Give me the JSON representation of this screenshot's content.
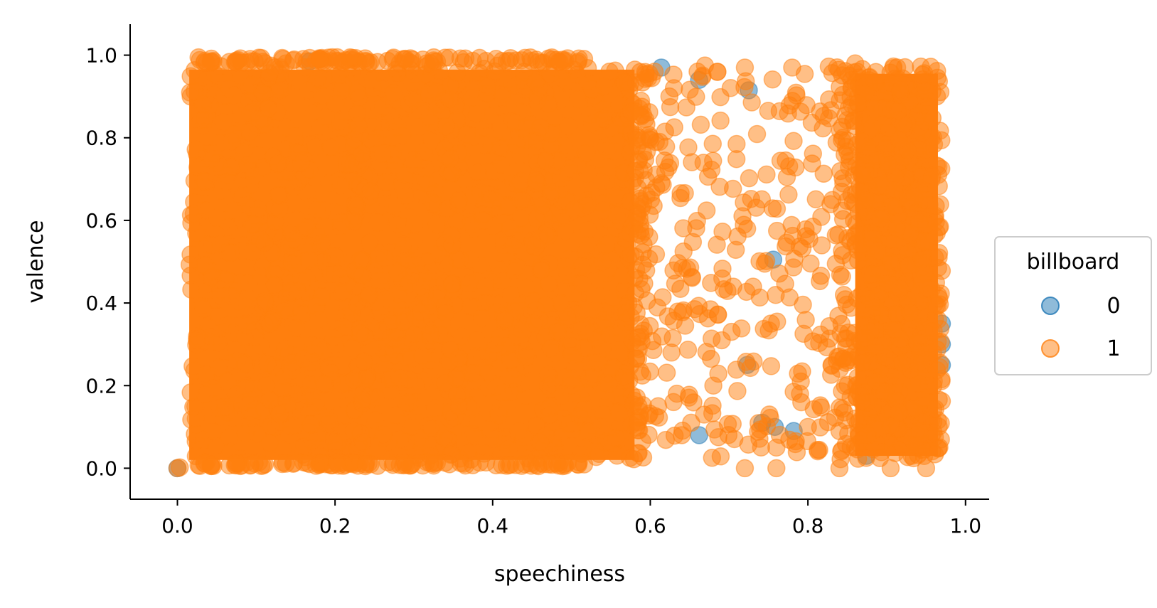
{
  "chart_data": {
    "type": "scatter",
    "xlabel": "speechiness",
    "ylabel": "valence",
    "xlim": [
      -0.06,
      1.03
    ],
    "ylim": [
      -0.075,
      1.075
    ],
    "xticks": [
      0.0,
      0.2,
      0.4,
      0.6,
      0.8,
      1.0
    ],
    "xtick_labels": [
      "0.0",
      "0.2",
      "0.4",
      "0.6",
      "0.8",
      "1.0"
    ],
    "yticks": [
      0.0,
      0.2,
      0.4,
      0.6,
      0.8,
      1.0
    ],
    "ytick_labels": [
      "0.0",
      "0.2",
      "0.4",
      "0.6",
      "0.8",
      "1.0"
    ],
    "grid": false,
    "legend": {
      "title": "billboard",
      "placement": "center-right-outside",
      "entries": [
        "0",
        "1"
      ]
    },
    "series": [
      {
        "name": "0",
        "color": "#1f77b4",
        "alpha": 0.5,
        "x_range": [
          0.0,
          0.97
        ],
        "y_range": [
          0.0,
          1.0
        ],
        "points": [
          [
            0.168,
            0.985
          ],
          [
            0.662,
            0.94
          ],
          [
            0.614,
            0.97
          ],
          [
            0.725,
            0.915
          ],
          [
            0.756,
            0.505
          ],
          [
            0.723,
            0.25
          ],
          [
            0.758,
            0.1
          ],
          [
            0.742,
            0.11
          ],
          [
            0.662,
            0.08
          ],
          [
            0.552,
            0.105
          ],
          [
            0.782,
            0.09
          ],
          [
            0.97,
            0.35
          ],
          [
            0.97,
            0.3
          ],
          [
            0.97,
            0.25
          ],
          [
            0.874,
            0.03
          ],
          [
            0.0,
            0.0
          ]
        ]
      },
      {
        "name": "1",
        "color": "#ff7f0e",
        "alpha": 0.5,
        "x_range": [
          0.0,
          0.97
        ],
        "y_range": [
          0.0,
          1.0
        ],
        "points": [
          [
            0.0,
            0.0
          ],
          [
            0.003,
            0.002
          ],
          [
            0.72,
            0.0
          ],
          [
            0.76,
            0.0
          ],
          [
            0.84,
            0.0
          ],
          [
            0.905,
            0.0
          ],
          [
            0.95,
            0.0
          ],
          [
            0.66,
            0.96
          ],
          [
            0.72,
            0.97
          ],
          [
            0.63,
            0.92
          ],
          [
            0.78,
            0.97
          ],
          [
            0.86,
            0.98
          ],
          [
            0.76,
            0.05
          ],
          [
            0.8,
            0.1
          ],
          [
            0.86,
            0.12
          ],
          [
            0.68,
            0.2
          ],
          [
            0.61,
            0.15
          ],
          [
            0.64,
            0.08
          ],
          [
            0.79,
            0.18
          ],
          [
            0.83,
            0.25
          ]
        ]
      }
    ]
  }
}
